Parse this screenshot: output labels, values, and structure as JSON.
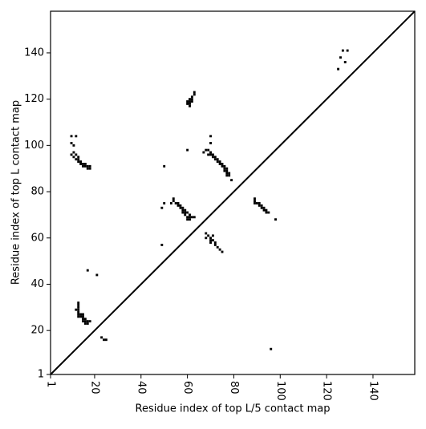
{
  "chart_data": {
    "type": "scatter",
    "xlabel": "Residue index of top L/5 contact map",
    "ylabel": "Residue index of top L contact map",
    "color": "#000000",
    "xlim": [
      1,
      158
    ],
    "ylim": [
      1,
      158
    ],
    "xticks": [
      1,
      20,
      40,
      60,
      80,
      100,
      120,
      140
    ],
    "yticks": [
      1,
      20,
      40,
      60,
      80,
      100,
      120,
      140
    ],
    "diagonal": true,
    "x": [
      10,
      12,
      10,
      11,
      10,
      11,
      11,
      12,
      13,
      12,
      13,
      14,
      13,
      14,
      15,
      15,
      16,
      16,
      17,
      17,
      18,
      18,
      50,
      60,
      60,
      60,
      61,
      61,
      61,
      62,
      62,
      62,
      63,
      63,
      61,
      70,
      70,
      67,
      68,
      69,
      70,
      69,
      70,
      71,
      71,
      72,
      72,
      73,
      73,
      74,
      74,
      75,
      75,
      76,
      76,
      77,
      76,
      77,
      77,
      78,
      78,
      77,
      79,
      49,
      50,
      54,
      54,
      53,
      55,
      56,
      56,
      57,
      57,
      58,
      58,
      59,
      59,
      58,
      59,
      60,
      61,
      60,
      61,
      62,
      60,
      61,
      63,
      49,
      68,
      69,
      71,
      68,
      70,
      70,
      71,
      70,
      72,
      72,
      73,
      74,
      75,
      89,
      89,
      90,
      89,
      91,
      91,
      92,
      92,
      93,
      93,
      94,
      94,
      95,
      98,
      125,
      126,
      127,
      128,
      129,
      12,
      13,
      13,
      13,
      13,
      13,
      13,
      13,
      14,
      15,
      14,
      15,
      15,
      16,
      16,
      15,
      16,
      17,
      17,
      18,
      17,
      21,
      23,
      24,
      25,
      96
    ],
    "values": [
      104,
      104,
      101,
      100,
      96,
      97,
      95,
      96,
      95,
      94,
      94,
      93,
      93,
      92,
      92,
      91,
      92,
      91,
      91,
      90,
      91,
      90,
      91,
      98,
      119,
      118,
      119,
      120,
      118,
      121,
      120,
      119,
      122,
      123,
      117,
      104,
      101,
      97,
      98,
      98,
      97,
      96,
      96,
      96,
      95,
      95,
      94,
      94,
      93,
      93,
      92,
      92,
      91,
      91,
      90,
      90,
      89,
      89,
      88,
      88,
      87,
      87,
      85,
      73,
      75,
      77,
      76,
      75,
      75,
      75,
      74,
      74,
      73,
      73,
      72,
      72,
      71,
      71,
      70,
      71,
      70,
      69,
      69,
      69,
      68,
      68,
      69,
      57,
      62,
      61,
      61,
      60,
      60,
      59,
      59,
      58,
      58,
      57,
      56,
      55,
      54,
      77,
      76,
      75,
      75,
      75,
      74,
      74,
      73,
      73,
      72,
      72,
      71,
      71,
      68,
      133,
      138,
      141,
      136,
      141,
      29,
      32,
      31,
      30,
      29,
      28,
      27,
      26,
      27,
      27,
      26,
      26,
      25,
      25,
      24,
      24,
      23,
      24,
      23,
      24,
      46,
      44,
      17,
      16,
      16,
      12
    ]
  }
}
